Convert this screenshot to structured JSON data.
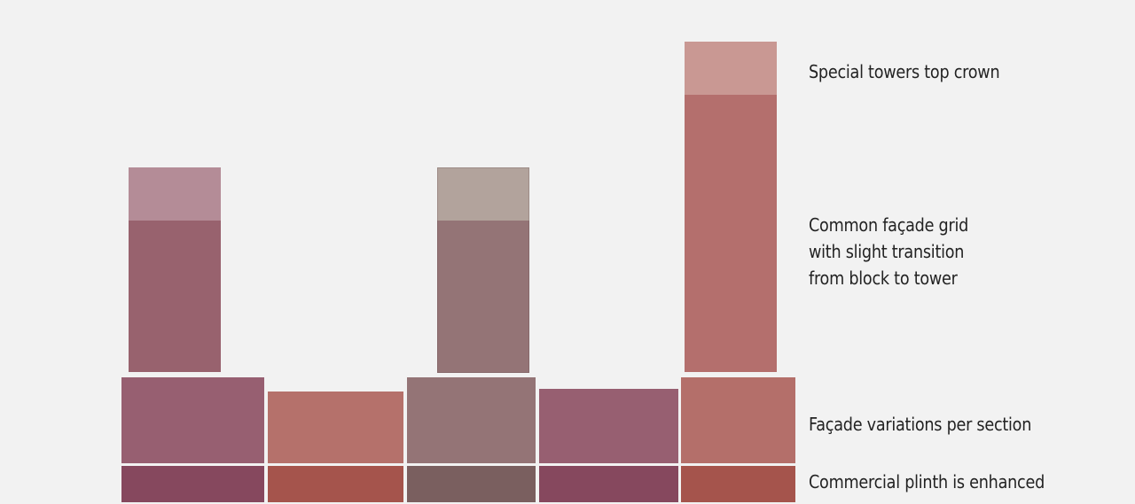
{
  "labels": {
    "top_crown": "Special towers top crown",
    "facade_grid": [
      "Common façade grid",
      "with slight transition",
      "from block to tower"
    ],
    "facade_variations": "Façade variations per section",
    "plinth": "Commercial plinth is enhanced"
  },
  "colors": {
    "background": "#f2f2f2",
    "mauve_plinth": "#86485e",
    "mauve_block": "#975f71",
    "terracotta_plinth": "#a5544c",
    "terracotta_block": "#b5716b",
    "taupe_plinth": "#7a5f5f",
    "taupe_block": "#947476",
    "crown_mauve": "#b48c97",
    "crown_taupe": "#b2a39c",
    "crown_terracotta": "#c99893",
    "tower_mauve_shaft": "#98626e",
    "tower_taupe_shaft": "#947476",
    "tower_terracotta_shaft": "#b46f6d",
    "text": "#222222"
  }
}
